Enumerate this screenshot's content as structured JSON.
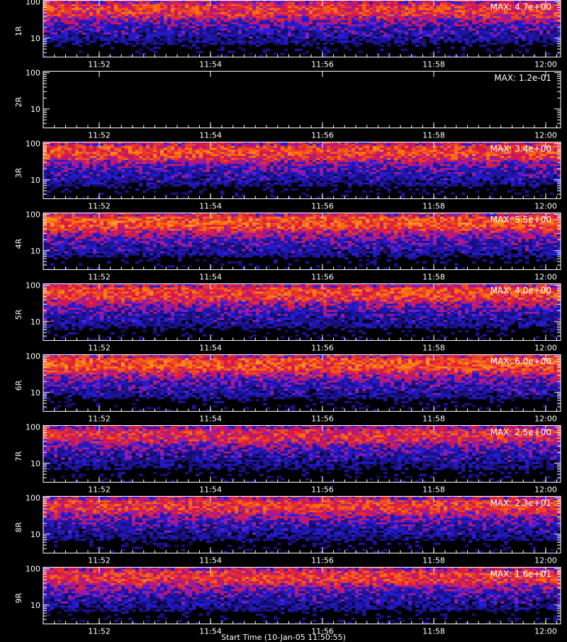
{
  "chart_data": {
    "type": "heatmap",
    "x_ticks": [
      "11:52",
      "11:54",
      "11:56",
      "11:58",
      "12:00"
    ],
    "y_ticks": [
      "100",
      "10"
    ],
    "colors": {
      "background": "#000000",
      "axis": "#ffffff",
      "low": "#1a1ad6",
      "mid": "#e0201a",
      "high": "#ffe060"
    },
    "panels": [
      {
        "ylabel": "1R",
        "max_label": "MAX: 4.7e+00",
        "intensity": 0.8,
        "data_range": [
          10,
          100
        ]
      },
      {
        "ylabel": "2R",
        "max_label": "MAX: 1.2e-01",
        "intensity": 0.0,
        "data_range": [
          10,
          100
        ]
      },
      {
        "ylabel": "3R",
        "max_label": "MAX: 3.4e+00",
        "intensity": 0.85,
        "data_range": [
          10,
          100
        ]
      },
      {
        "ylabel": "4R",
        "max_label": "MAX: 5.5e+00",
        "intensity": 0.9,
        "data_range": [
          10,
          100
        ]
      },
      {
        "ylabel": "5R",
        "max_label": "MAX: 4.0e+00",
        "intensity": 0.85,
        "data_range": [
          10,
          100
        ]
      },
      {
        "ylabel": "6R",
        "max_label": "MAX: 6.0e+00",
        "intensity": 0.9,
        "data_range": [
          10,
          100
        ]
      },
      {
        "ylabel": "7R",
        "max_label": "MAX: 2.5e+00",
        "intensity": 0.75,
        "data_range": [
          10,
          100
        ]
      },
      {
        "ylabel": "8R",
        "max_label": "MAX: 2.3e+01",
        "intensity": 0.8,
        "data_range": [
          10,
          100
        ]
      },
      {
        "ylabel": "9R",
        "max_label": "MAX: 1.6e+01",
        "intensity": 0.8,
        "data_range": [
          10,
          100
        ]
      }
    ]
  },
  "footer": {
    "text": "Start Time (10-Jan-05 11:50:55)"
  }
}
